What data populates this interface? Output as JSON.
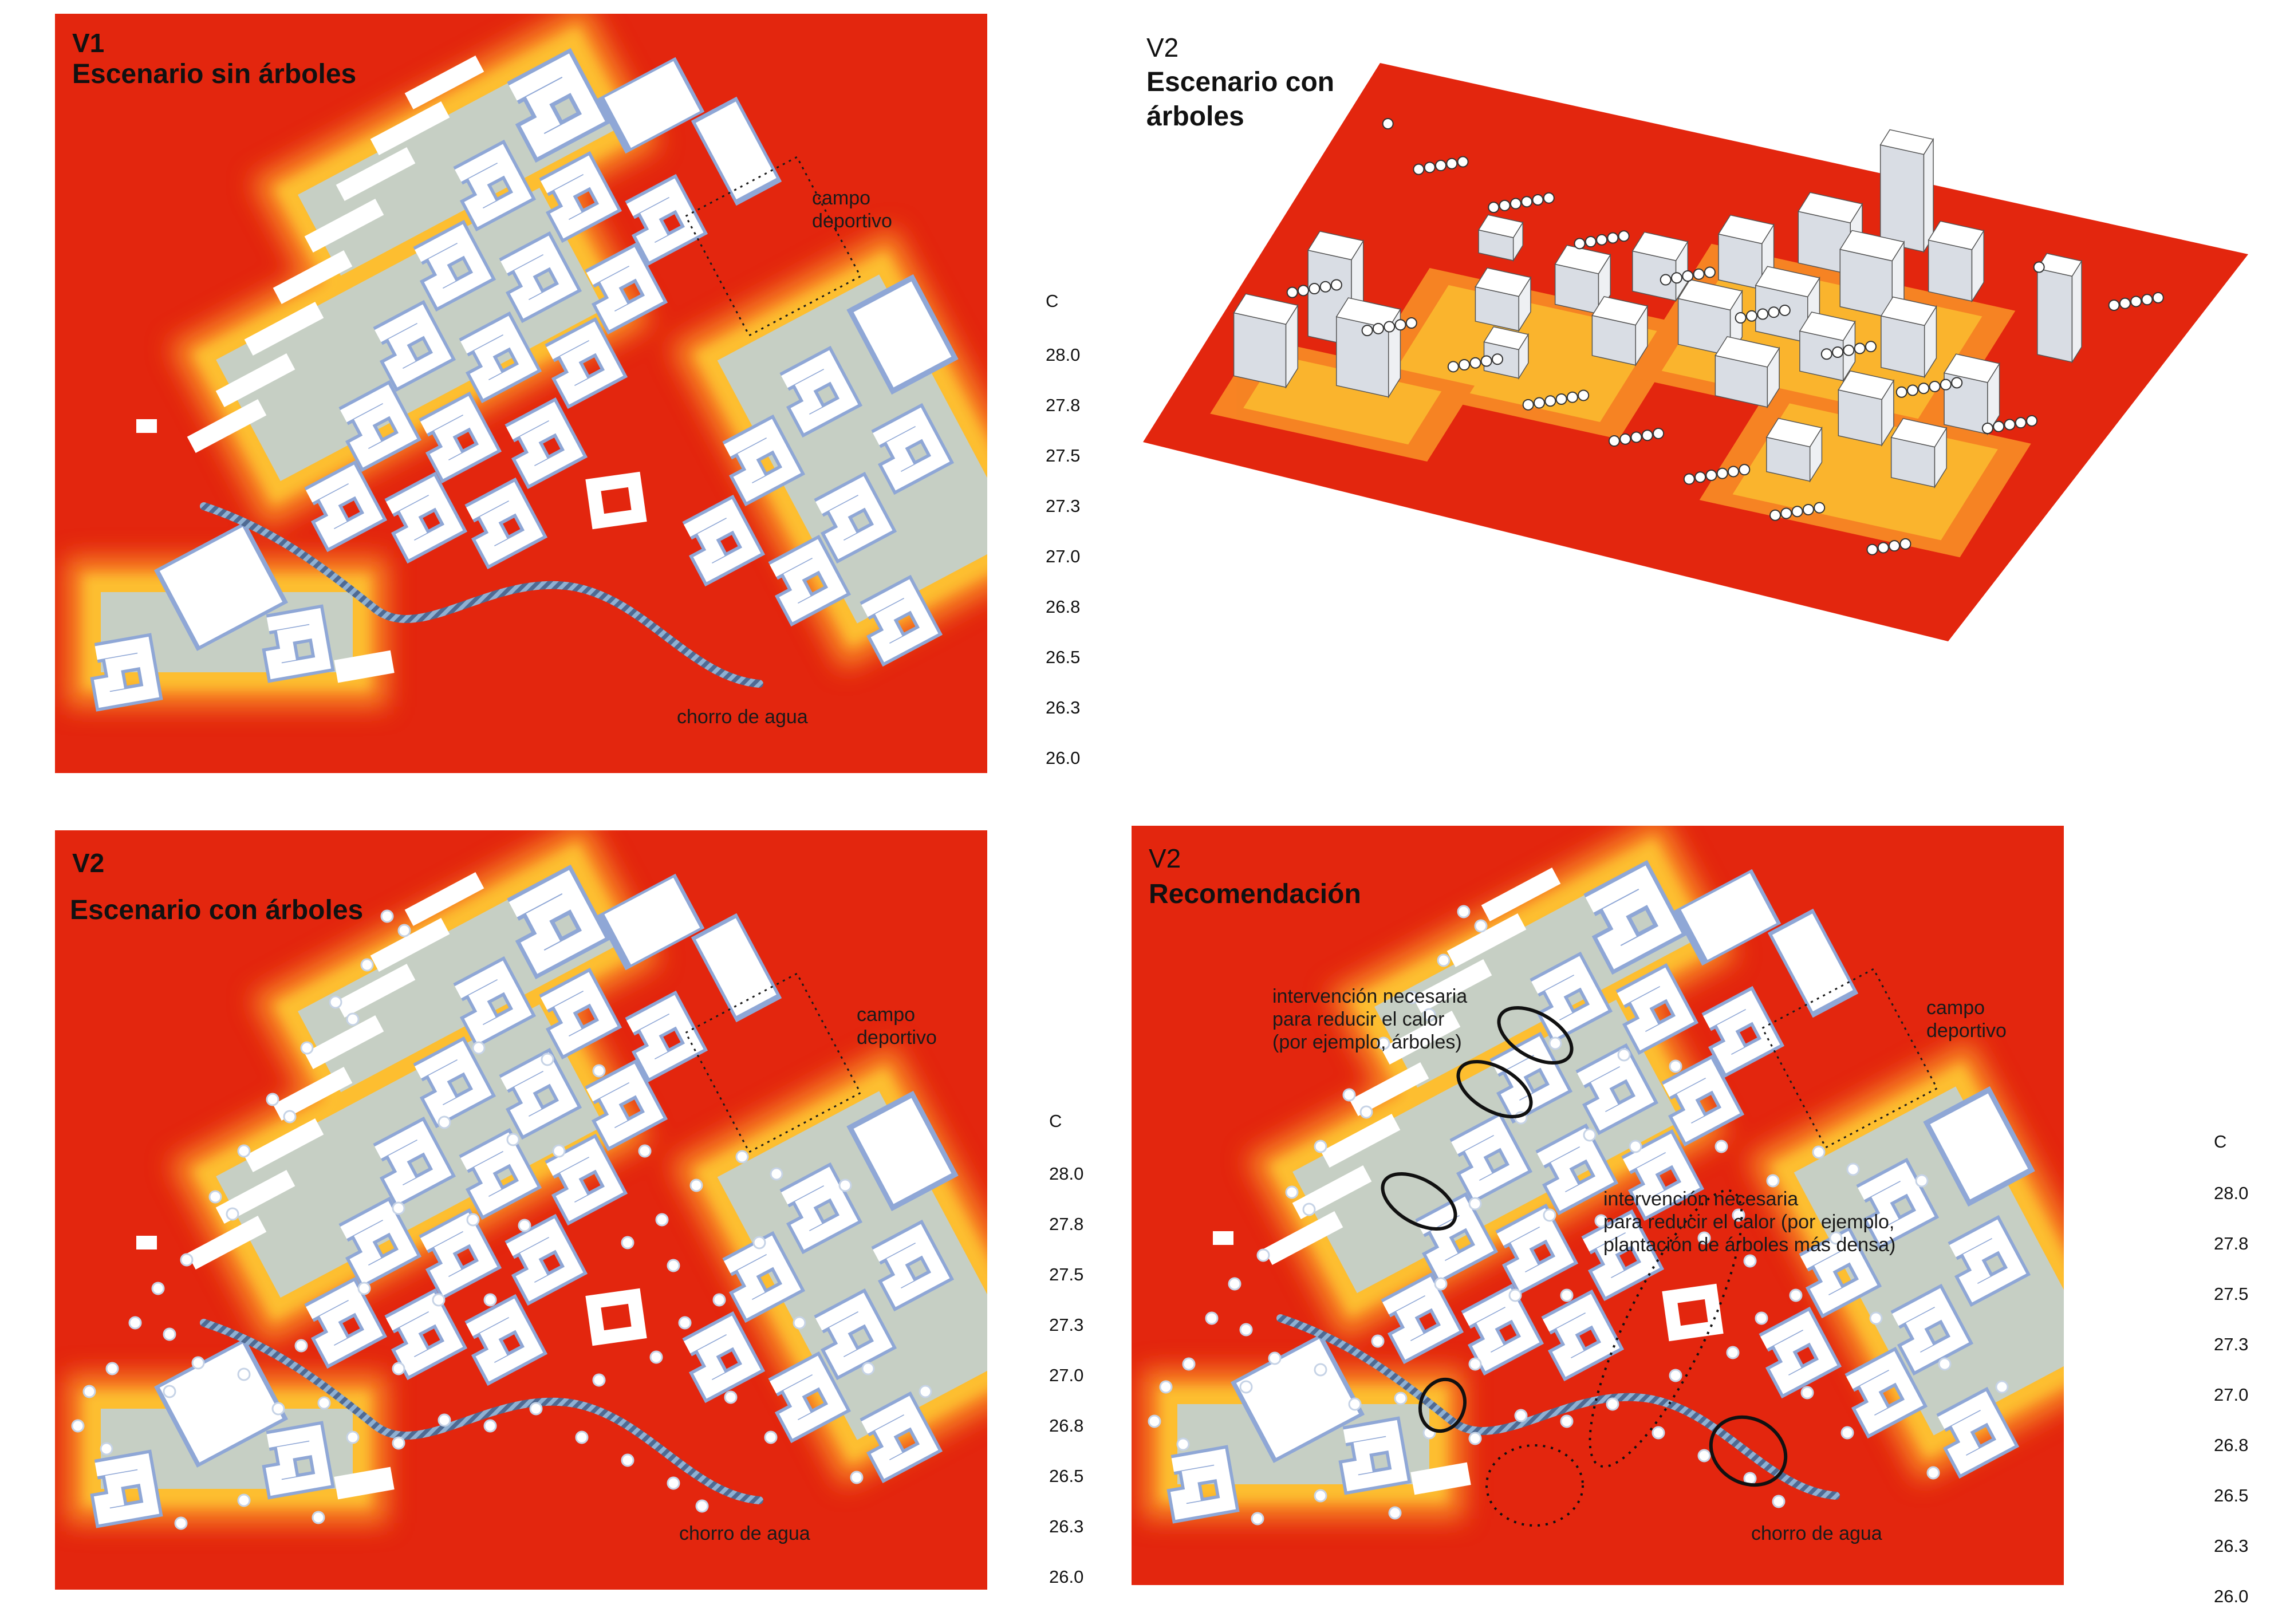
{
  "panels": {
    "v1": {
      "tag": "V1",
      "title": "Escenario sin árboles",
      "campo": "campo\ndeportivo",
      "chorro": "chorro de agua"
    },
    "v2_3d": {
      "tag": "V2",
      "title": "Escenario con\nárboles"
    },
    "v2_plan": {
      "tag": "V2",
      "title": "Escenario con árboles",
      "campo": "campo\ndeportivo",
      "chorro": "chorro de agua"
    },
    "v2_rec": {
      "tag": "V2",
      "title": "Recomendación",
      "campo": "campo\ndeportivo",
      "chorro": "chorro de agua",
      "note1": "intervención necesaria\npara reducir el calor\n(por ejemplo, árboles)",
      "note2": "intervención necesaria\npara reducir el calor (por ejemplo,\nplantación de árboles más densa)"
    }
  },
  "legend": {
    "unit": "C",
    "values": [
      "28.0",
      "27.8",
      "27.5",
      "27.3",
      "27.0",
      "26.8",
      "26.5",
      "26.3",
      "26.0"
    ],
    "colors": [
      "#e3260e",
      "#f2561c",
      "#f98e26",
      "#fdc431",
      "#f7e36d",
      "#dfe4a4",
      "#bcd2e0",
      "#93add8",
      "#6e8bc9"
    ]
  },
  "palette": {
    "hot": "#e3260e",
    "building": "#ffffff",
    "shade": "#8fa7d6"
  }
}
